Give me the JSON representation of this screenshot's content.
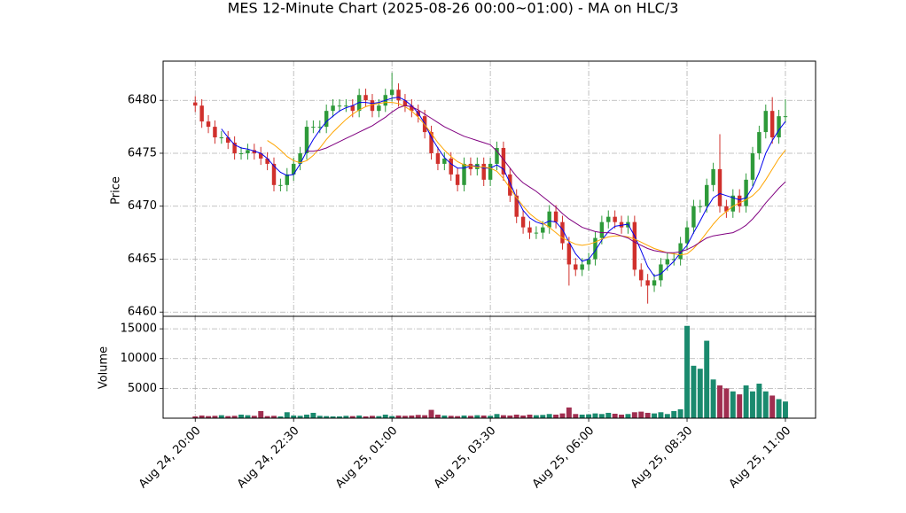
{
  "chart_data": [
    {
      "type": "candlestick",
      "title": "MES 12-Minute Chart (2025-08-26 00:00~01:00) - MA on HLC/3",
      "ylabel": "Price",
      "up_color": "#2e9a3a",
      "down_color": "#d0302c",
      "grid": true,
      "xlim": [
        -4.9,
        94.6
      ],
      "ylim": [
        6459.6,
        6483.7
      ],
      "yticks": [
        6460,
        6465,
        6470,
        6475,
        6480
      ],
      "open": [
        6479.8,
        6479.5,
        6478,
        6477.5,
        6476.5,
        6476.5,
        6476,
        6475,
        6475,
        6475.3,
        6475,
        6474.5,
        6474,
        6472,
        6472,
        6473,
        6474,
        6475,
        6477.5,
        6477.5,
        6477.5,
        6479,
        6479.5,
        6479.5,
        6479.5,
        6479,
        6480.5,
        6480,
        6479,
        6479.5,
        6480.5,
        6481,
        6480,
        6479.5,
        6479,
        6478.5,
        6477,
        6475,
        6474,
        6474.5,
        6473,
        6472,
        6474,
        6473.5,
        6474,
        6472.5,
        6474,
        6475.5,
        6473,
        6471,
        6469,
        6468,
        6467.5,
        6467.5,
        6468,
        6469.5,
        6468.5,
        6466.5,
        6464.5,
        6464,
        6464.5,
        6465,
        6467,
        6468.5,
        6469,
        6468.5,
        6468,
        6468.5,
        6464,
        6463,
        6462.5,
        6463,
        6464.5,
        6465,
        6465,
        6466.5,
        6468,
        6470,
        6470,
        6472,
        6473.5,
        6470,
        6469.5,
        6471,
        6470,
        6472.5,
        6475,
        6477,
        6479,
        6476.5,
        6478.5
      ],
      "high": [
        6480.4,
        6480.1,
        6478.6,
        6478.1,
        6477.1,
        6477.1,
        6476.6,
        6475.6,
        6475.9,
        6475.9,
        6475.6,
        6475.1,
        6474.6,
        6472.6,
        6473.6,
        6474.6,
        6475.6,
        6478.1,
        6478.1,
        6478.1,
        6479.6,
        6480.1,
        6480.1,
        6480.1,
        6480.1,
        6481.1,
        6481.1,
        6480.6,
        6480.1,
        6481.1,
        6482.6,
        6481.6,
        6480.6,
        6480.1,
        6479.6,
        6479.1,
        6477.6,
        6475.6,
        6475.1,
        6475.1,
        6473.6,
        6474.6,
        6474.6,
        6474.6,
        6474.6,
        6474.6,
        6476.1,
        6476.1,
        6473.6,
        6471.6,
        6469.6,
        6468.6,
        6468.1,
        6468.6,
        6470.1,
        6470.1,
        6469.1,
        6467.1,
        6465.1,
        6465.1,
        6465.6,
        6467.6,
        6469.1,
        6469.6,
        6469.6,
        6469.1,
        6469.1,
        6469.1,
        6464.6,
        6463.6,
        6463.6,
        6465.1,
        6465.6,
        6465.6,
        6467.1,
        6468.6,
        6470.6,
        6470.6,
        6472.6,
        6474.1,
        6476.8,
        6470.6,
        6471.6,
        6471.6,
        6473.1,
        6475.6,
        6477.6,
        6479.6,
        6480.3,
        6479.1,
        6480.1
      ],
      "low": [
        6478.9,
        6477.4,
        6476.9,
        6475.9,
        6475.9,
        6475.4,
        6474.4,
        6474.4,
        6474.4,
        6474.4,
        6473.9,
        6473.4,
        6471.4,
        6471.4,
        6471.4,
        6472.4,
        6473.4,
        6474.4,
        6476.9,
        6476.9,
        6476.9,
        6478.4,
        6478.9,
        6478.9,
        6478.4,
        6478.4,
        6479.4,
        6478.4,
        6478.4,
        6478.9,
        6479.9,
        6479.4,
        6478.9,
        6478.4,
        6477.9,
        6476.4,
        6474.4,
        6473.4,
        6473.4,
        6472.4,
        6471.4,
        6471.4,
        6472.9,
        6472.9,
        6471.9,
        6471.9,
        6473.4,
        6472.4,
        6470.4,
        6468.4,
        6467.4,
        6466.9,
        6466.9,
        6466.9,
        6467.4,
        6467.9,
        6465.9,
        6462.5,
        6463.4,
        6463.4,
        6463.9,
        6464.4,
        6466.4,
        6467.9,
        6467.9,
        6467.4,
        6467.4,
        6463.4,
        6462.4,
        6460.8,
        6461.9,
        6462.4,
        6463.9,
        6464.4,
        6464.4,
        6465.9,
        6467.4,
        6469.4,
        6469.4,
        6471.4,
        6469.4,
        6468.9,
        6468.9,
        6469.4,
        6469.4,
        6471.9,
        6474.4,
        6476.4,
        6475.9,
        6475.9,
        6477.9
      ],
      "close": [
        6479.5,
        6478,
        6477.5,
        6476.5,
        6476.5,
        6476,
        6475,
        6475,
        6475.3,
        6475,
        6474.5,
        6474,
        6472,
        6472,
        6473,
        6474,
        6475,
        6477.5,
        6477.5,
        6477.5,
        6479,
        6479.5,
        6479.5,
        6479.5,
        6479,
        6480.5,
        6480,
        6479,
        6479.5,
        6480.5,
        6481,
        6480,
        6479.5,
        6479,
        6478.5,
        6477,
        6475,
        6474,
        6474.5,
        6473,
        6472,
        6474,
        6473.5,
        6474,
        6472.5,
        6474,
        6475.5,
        6473,
        6471,
        6469,
        6468,
        6467.5,
        6467.5,
        6468,
        6469.5,
        6468.5,
        6466.5,
        6464.5,
        6464,
        6464.5,
        6465,
        6467,
        6468.5,
        6469,
        6468.5,
        6468,
        6468.5,
        6464,
        6463,
        6462.5,
        6463,
        6464.5,
        6465,
        6465,
        6466.5,
        6468,
        6470,
        6470,
        6472,
        6473.5,
        6470,
        6469.5,
        6471,
        6470,
        6472.5,
        6475,
        6477,
        6479,
        6476.5,
        6478.5,
        6478.5
      ],
      "series": [
        {
          "color": "#0000ee",
          "values": [
            null,
            null,
            null,
            null,
            6477.3,
            6476.5,
            6475.8,
            6475.5,
            6475.4,
            6475.2,
            6475,
            6474.5,
            6473.8,
            6473.2,
            6472.9,
            6473,
            6474,
            6475.2,
            6476.3,
            6477.2,
            6478,
            6478.5,
            6479,
            6479.3,
            6479.5,
            6479.8,
            6479.8,
            6479.7,
            6479.8,
            6480,
            6480.2,
            6480.3,
            6480,
            6479.5,
            6478.8,
            6477.8,
            6476.5,
            6475.5,
            6474.6,
            6474,
            6473.6,
            6473.6,
            6473.8,
            6473.8,
            6473.6,
            6473.6,
            6473.9,
            6473.5,
            6472.2,
            6470.8,
            6469.6,
            6468.9,
            6468.5,
            6468.3,
            6468.6,
            6468.5,
            6467.8,
            6466.6,
            6465.5,
            6464.8,
            6465,
            6465.8,
            6466.8,
            6467.6,
            6468.1,
            6468.2,
            6468.3,
            6467.2,
            6465.8,
            6464.3,
            6463.4,
            6463.6,
            6464.2,
            6464.8,
            6465.6,
            6466.3,
            6467.5,
            6468.6,
            6469.8,
            6470.8,
            6471.2,
            6471,
            6470.8,
            6470.6,
            6470.8,
            6471.8,
            6473.2,
            6475,
            6476.2,
            6477.2,
            6478
          ]
        },
        {
          "color": "#ffa500",
          "values": [
            null,
            null,
            null,
            null,
            null,
            null,
            null,
            null,
            null,
            null,
            null,
            6476.2,
            6475.8,
            6475.3,
            6474.7,
            6474.3,
            6474.1,
            6474.3,
            6474.8,
            6475.5,
            6476.3,
            6477,
            6477.6,
            6478.2,
            6478.7,
            6479.1,
            6479.4,
            6479.6,
            6479.7,
            6479.8,
            6479.8,
            6479.7,
            6479.4,
            6479,
            6478.4,
            6477.7,
            6476.9,
            6476,
            6475.3,
            6474.7,
            6474.2,
            6473.9,
            6473.8,
            6473.7,
            6473.7,
            6473.6,
            6473.3,
            6472.6,
            6471.7,
            6470.8,
            6470,
            6469.3,
            6468.8,
            6468.4,
            6468,
            6467.5,
            6467,
            6466.7,
            6466.4,
            6466.3,
            6466.4,
            6466.6,
            6466.9,
            6467.1,
            6467.2,
            6467.2,
            6467.1,
            6466.9,
            6466.6,
            6466.3,
            6466,
            6465.8,
            6465.6,
            6465.5,
            6465.4,
            6465.5,
            6466,
            6466.7,
            6467.5,
            6468.3,
            6469,
            6469.5,
            6470,
            6470.3,
            6470.6,
            6471,
            6471.6,
            6472.5,
            6473.5,
            6474.5,
            6475.3
          ]
        },
        {
          "color": "#800080",
          "values": [
            null,
            null,
            null,
            null,
            null,
            null,
            null,
            null,
            null,
            null,
            null,
            null,
            null,
            null,
            null,
            null,
            null,
            6475.2,
            6475.2,
            6475.3,
            6475.5,
            6475.8,
            6476.1,
            6476.4,
            6476.7,
            6477,
            6477.3,
            6477.6,
            6478,
            6478.4,
            6478.9,
            6479.3,
            6479.5,
            6479.4,
            6479.1,
            6478.7,
            6478.3,
            6477.9,
            6477.5,
            6477.2,
            6476.9,
            6476.6,
            6476.4,
            6476.2,
            6476,
            6475.8,
            6475.2,
            6474.4,
            6473.6,
            6472.8,
            6472.2,
            6471.8,
            6471.4,
            6470.9,
            6470.4,
            6469.9,
            6469.3,
            6468.8,
            6468.4,
            6468,
            6467.8,
            6467.6,
            6467.5,
            6467.5,
            6467.4,
            6467.2,
            6467,
            6466.6,
            6466.3,
            6466,
            6465.8,
            6465.7,
            6465.6,
            6465.6,
            6465.7,
            6465.9,
            6466.2,
            6466.6,
            6467,
            6467.2,
            6467.3,
            6467.4,
            6467.5,
            6467.8,
            6468.2,
            6468.8,
            6469.5,
            6470.3,
            6471,
            6471.7,
            6472.3
          ]
        }
      ]
    },
    {
      "type": "bar",
      "ylabel": "Volume",
      "up_color": "#1a8a6e",
      "down_color": "#a02e50",
      "grid": true,
      "xlim": [
        -4.9,
        94.6
      ],
      "ylim": [
        0,
        17100
      ],
      "yticks": [
        5000,
        10000,
        15000
      ],
      "xticks": [
        {
          "value": 0,
          "label": "Aug 24, 20:00"
        },
        {
          "value": 15,
          "label": "Aug 24, 22:30"
        },
        {
          "value": 30,
          "label": "Aug 25, 01:00"
        },
        {
          "value": 45,
          "label": "Aug 25, 03:30"
        },
        {
          "value": 60,
          "label": "Aug 25, 06:00"
        },
        {
          "value": 75,
          "label": "Aug 25, 08:30"
        },
        {
          "value": 90,
          "label": "Aug 25, 11:00"
        }
      ],
      "values": [
        300,
        450,
        350,
        400,
        500,
        350,
        400,
        600,
        500,
        400,
        1200,
        350,
        400,
        300,
        1000,
        450,
        400,
        600,
        900,
        400,
        350,
        300,
        300,
        400,
        350,
        450,
        300,
        400,
        350,
        600,
        350,
        450,
        400,
        450,
        550,
        500,
        1400,
        600,
        450,
        400,
        350,
        450,
        400,
        500,
        450,
        400,
        700,
        500,
        450,
        600,
        450,
        600,
        500,
        550,
        700,
        600,
        800,
        1800,
        700,
        600,
        650,
        800,
        700,
        900,
        750,
        600,
        700,
        1000,
        1100,
        900,
        800,
        1000,
        700,
        1200,
        1500,
        15500,
        8800,
        8300,
        13000,
        6500,
        5500,
        5000,
        4500,
        4000,
        5500,
        4500,
        5800,
        4500,
        3800,
        3200,
        2800
      ]
    }
  ]
}
